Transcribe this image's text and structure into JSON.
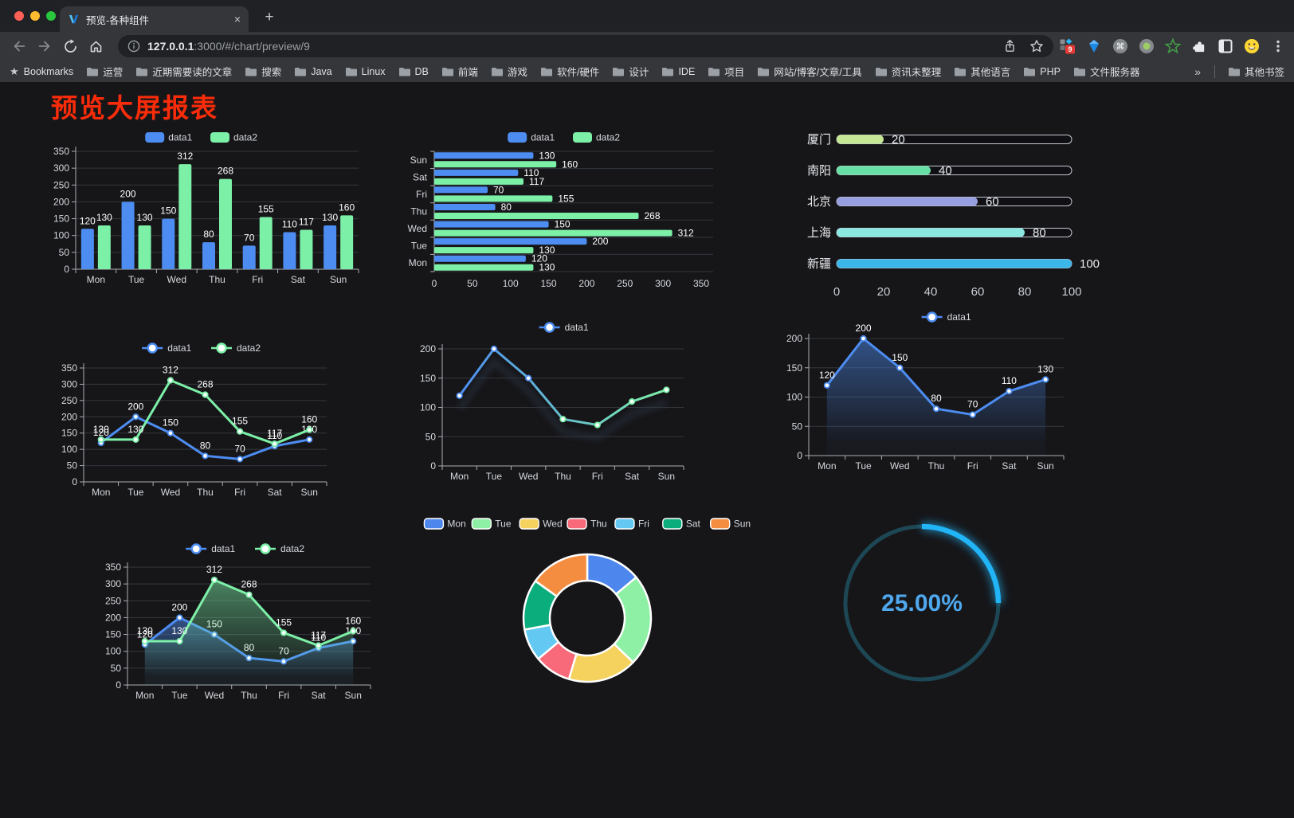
{
  "browser": {
    "tab": {
      "title": "预览-各种组件",
      "close": "×",
      "new_tab": "+"
    },
    "url": {
      "host": "127.0.0.1",
      "rest": ":3000/#/chart/preview/9"
    },
    "bookmarks_bar": {
      "star": "★",
      "label": "Bookmarks",
      "folders": [
        "运营",
        "近期需要读的文章",
        "搜索",
        "Java",
        "Linux",
        "DB",
        "前端",
        "游戏",
        "软件/硬件",
        "设计",
        "IDE",
        "项目",
        "网站/博客/文章/工具",
        "资讯未整理",
        "其他语言",
        "PHP",
        "文件服务器"
      ],
      "overflow": "»",
      "other": "其他书签"
    },
    "extension_badge": "9"
  },
  "page": {
    "title": "预览大屏报表",
    "title_color": "#fb2c0a"
  },
  "chart_data": [
    {
      "type": "bar",
      "categories": [
        "Mon",
        "Tue",
        "Wed",
        "Thu",
        "Fri",
        "Sat",
        "Sun"
      ],
      "series": [
        {
          "name": "data1",
          "color": "#4d8df2",
          "values": [
            120,
            200,
            150,
            80,
            70,
            110,
            130
          ]
        },
        {
          "name": "data2",
          "color": "#7df0a8",
          "values": [
            130,
            130,
            312,
            268,
            155,
            117,
            160
          ]
        }
      ],
      "ylim": [
        0,
        350
      ],
      "ytick_step": 50,
      "legend_position": "top",
      "grid": true,
      "data_labels": true
    },
    {
      "type": "hbar",
      "categories": [
        "Mon",
        "Tue",
        "Wed",
        "Thu",
        "Fri",
        "Sat",
        "Sun"
      ],
      "series": [
        {
          "name": "data1",
          "color": "#4d8df2",
          "values": [
            120,
            200,
            150,
            80,
            70,
            110,
            130
          ]
        },
        {
          "name": "data2",
          "color": "#7df0a8",
          "values": [
            130,
            130,
            312,
            268,
            155,
            117,
            160
          ]
        }
      ],
      "xlim": [
        0,
        350
      ],
      "xtick_step": 50,
      "legend_position": "top",
      "data_labels": true
    },
    {
      "type": "progress",
      "categories": [
        "厦门",
        "南阳",
        "北京",
        "上海",
        "新疆"
      ],
      "values": [
        20,
        40,
        60,
        80,
        100
      ],
      "colors": [
        "#c6e793",
        "#68e0a5",
        "#989fe0",
        "#8be8e0",
        "#3ab6e8"
      ],
      "xlim": [
        0,
        100
      ],
      "xtick_step": 20
    },
    {
      "type": "line",
      "categories": [
        "Mon",
        "Tue",
        "Wed",
        "Thu",
        "Fri",
        "Sat",
        "Sun"
      ],
      "series": [
        {
          "name": "data1",
          "color": "#4d8df2",
          "values": [
            120,
            200,
            150,
            80,
            70,
            110,
            130
          ],
          "show_labels": true
        },
        {
          "name": "data2",
          "color": "#7df0a8",
          "values": [
            130,
            130,
            312,
            268,
            155,
            117,
            160
          ],
          "show_labels": true
        }
      ],
      "ylim": [
        0,
        350
      ],
      "ytick_step": 50,
      "legend_position": "top"
    },
    {
      "type": "line",
      "categories": [
        "Mon",
        "Tue",
        "Wed",
        "Thu",
        "Fri",
        "Sat",
        "Sun"
      ],
      "series": [
        {
          "name": "data1",
          "color": "#4d8df2",
          "gradient_to": "#7df0a8",
          "values": [
            120,
            200,
            150,
            80,
            70,
            110,
            130
          ],
          "show_labels": false
        }
      ],
      "shadow": true,
      "ylim": [
        0,
        200
      ],
      "ytick_step": 50,
      "legend_position": "top"
    },
    {
      "type": "line",
      "categories": [
        "Mon",
        "Tue",
        "Wed",
        "Thu",
        "Fri",
        "Sat",
        "Sun"
      ],
      "series": [
        {
          "name": "data1",
          "color": "#4d8df2",
          "values": [
            120,
            200,
            150,
            80,
            70,
            110,
            130
          ],
          "show_labels": true,
          "area": true
        }
      ],
      "ylim": [
        0,
        200
      ],
      "ytick_step": 50,
      "legend_position": "top"
    },
    {
      "type": "line",
      "categories": [
        "Mon",
        "Tue",
        "Wed",
        "Thu",
        "Fri",
        "Sat",
        "Sun"
      ],
      "series": [
        {
          "name": "data1",
          "color": "#4d8df2",
          "values": [
            120,
            200,
            150,
            80,
            70,
            110,
            130
          ],
          "show_labels": true,
          "area": true
        },
        {
          "name": "data2",
          "color": "#7df0a8",
          "values": [
            130,
            130,
            312,
            268,
            155,
            117,
            160
          ],
          "show_labels": true,
          "area": true
        }
      ],
      "ylim": [
        0,
        350
      ],
      "ytick_step": 50,
      "legend_position": "top"
    },
    {
      "type": "pie",
      "labels": [
        "Mon",
        "Tue",
        "Wed",
        "Thu",
        "Fri",
        "Sat",
        "Sun"
      ],
      "values": [
        120,
        200,
        150,
        80,
        70,
        110,
        130
      ],
      "colors": [
        "#4d87ee",
        "#8df0a4",
        "#f5d15e",
        "#f8697a",
        "#63c8f2",
        "#0cad7c",
        "#f58d41"
      ],
      "donut": true,
      "legend_position": "top"
    },
    {
      "type": "gauge",
      "value": 25,
      "value_text": "25.00%",
      "color": "#21b4f6",
      "track_color": "#1d4754",
      "text_color": "#4fa8ee"
    }
  ]
}
